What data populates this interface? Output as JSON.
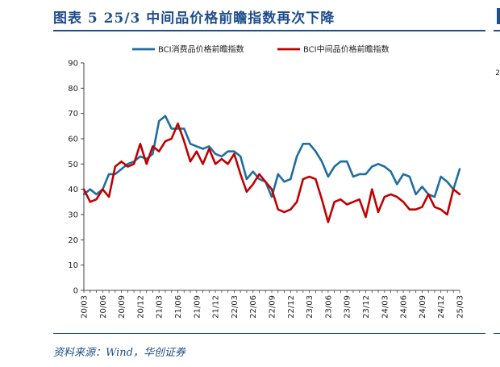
{
  "page": {
    "title": "图表 5   25/3 中间品价格前瞻指数再次下降",
    "source": "资料来源：Wind，华创证券",
    "edge_value": "2"
  },
  "chart_data": {
    "type": "line",
    "title": "25/3 中间品价格前瞻指数再次下降",
    "xlabel": "",
    "ylabel": "",
    "ylim": [
      0,
      90
    ],
    "yticks": [
      0,
      10,
      20,
      30,
      40,
      50,
      60,
      70,
      80,
      90
    ],
    "x_tick_labels": [
      "20/03",
      "20/06",
      "20/09",
      "20/12",
      "21/03",
      "21/06",
      "21/09",
      "21/12",
      "22/03",
      "22/06",
      "22/09",
      "22/12",
      "23/03",
      "23/06",
      "23/09",
      "23/12",
      "24/03",
      "24/06",
      "24/09",
      "24/12",
      "25/03"
    ],
    "categories": [
      "20/03",
      "20/04",
      "20/05",
      "20/06",
      "20/07",
      "20/08",
      "20/09",
      "20/10",
      "20/11",
      "20/12",
      "21/01",
      "21/02",
      "21/03",
      "21/04",
      "21/05",
      "21/06",
      "21/07",
      "21/08",
      "21/09",
      "21/10",
      "21/11",
      "21/12",
      "22/01",
      "22/02",
      "22/03",
      "22/04",
      "22/05",
      "22/06",
      "22/07",
      "22/08",
      "22/09",
      "22/10",
      "22/11",
      "22/12",
      "23/01",
      "23/02",
      "23/03",
      "23/04",
      "23/05",
      "23/06",
      "23/07",
      "23/08",
      "23/09",
      "23/10",
      "23/11",
      "23/12",
      "24/01",
      "24/02",
      "24/03",
      "24/04",
      "24/05",
      "24/06",
      "24/07",
      "24/08",
      "24/09",
      "24/10",
      "24/11",
      "24/12",
      "25/01",
      "25/02",
      "25/03"
    ],
    "legend_position": "top-center",
    "series": [
      {
        "name": "BCI消费品价格前瞻指数",
        "color": "#1f6e9c",
        "values": [
          38,
          40,
          38,
          40,
          46,
          46,
          48,
          50,
          51,
          53,
          52,
          54,
          67,
          69,
          64,
          64,
          64,
          58,
          57,
          56,
          57,
          54,
          53,
          55,
          55,
          53,
          44,
          47,
          44,
          43,
          37,
          46,
          43,
          44,
          53,
          58,
          58,
          55,
          51,
          45,
          49,
          51,
          51,
          45,
          46,
          46,
          49,
          50,
          49,
          47,
          42,
          46,
          45,
          38,
          41,
          38,
          37,
          45,
          43,
          40,
          48
        ]
      },
      {
        "name": "BCI中间品价格前瞻指数",
        "color": "#c00000",
        "values": [
          40,
          35,
          36,
          40,
          37,
          49,
          51,
          49,
          50,
          58,
          50,
          57,
          55,
          59,
          60,
          66,
          59,
          51,
          55,
          50,
          56,
          50,
          52,
          50,
          54,
          46,
          39,
          42,
          46,
          43,
          40,
          32,
          31,
          32,
          35,
          44,
          45,
          44,
          36,
          27,
          35,
          36,
          34,
          35,
          36,
          29,
          40,
          31,
          37,
          38,
          37,
          35,
          32,
          32,
          33,
          38,
          33,
          32,
          30,
          40,
          38
        ]
      }
    ]
  }
}
